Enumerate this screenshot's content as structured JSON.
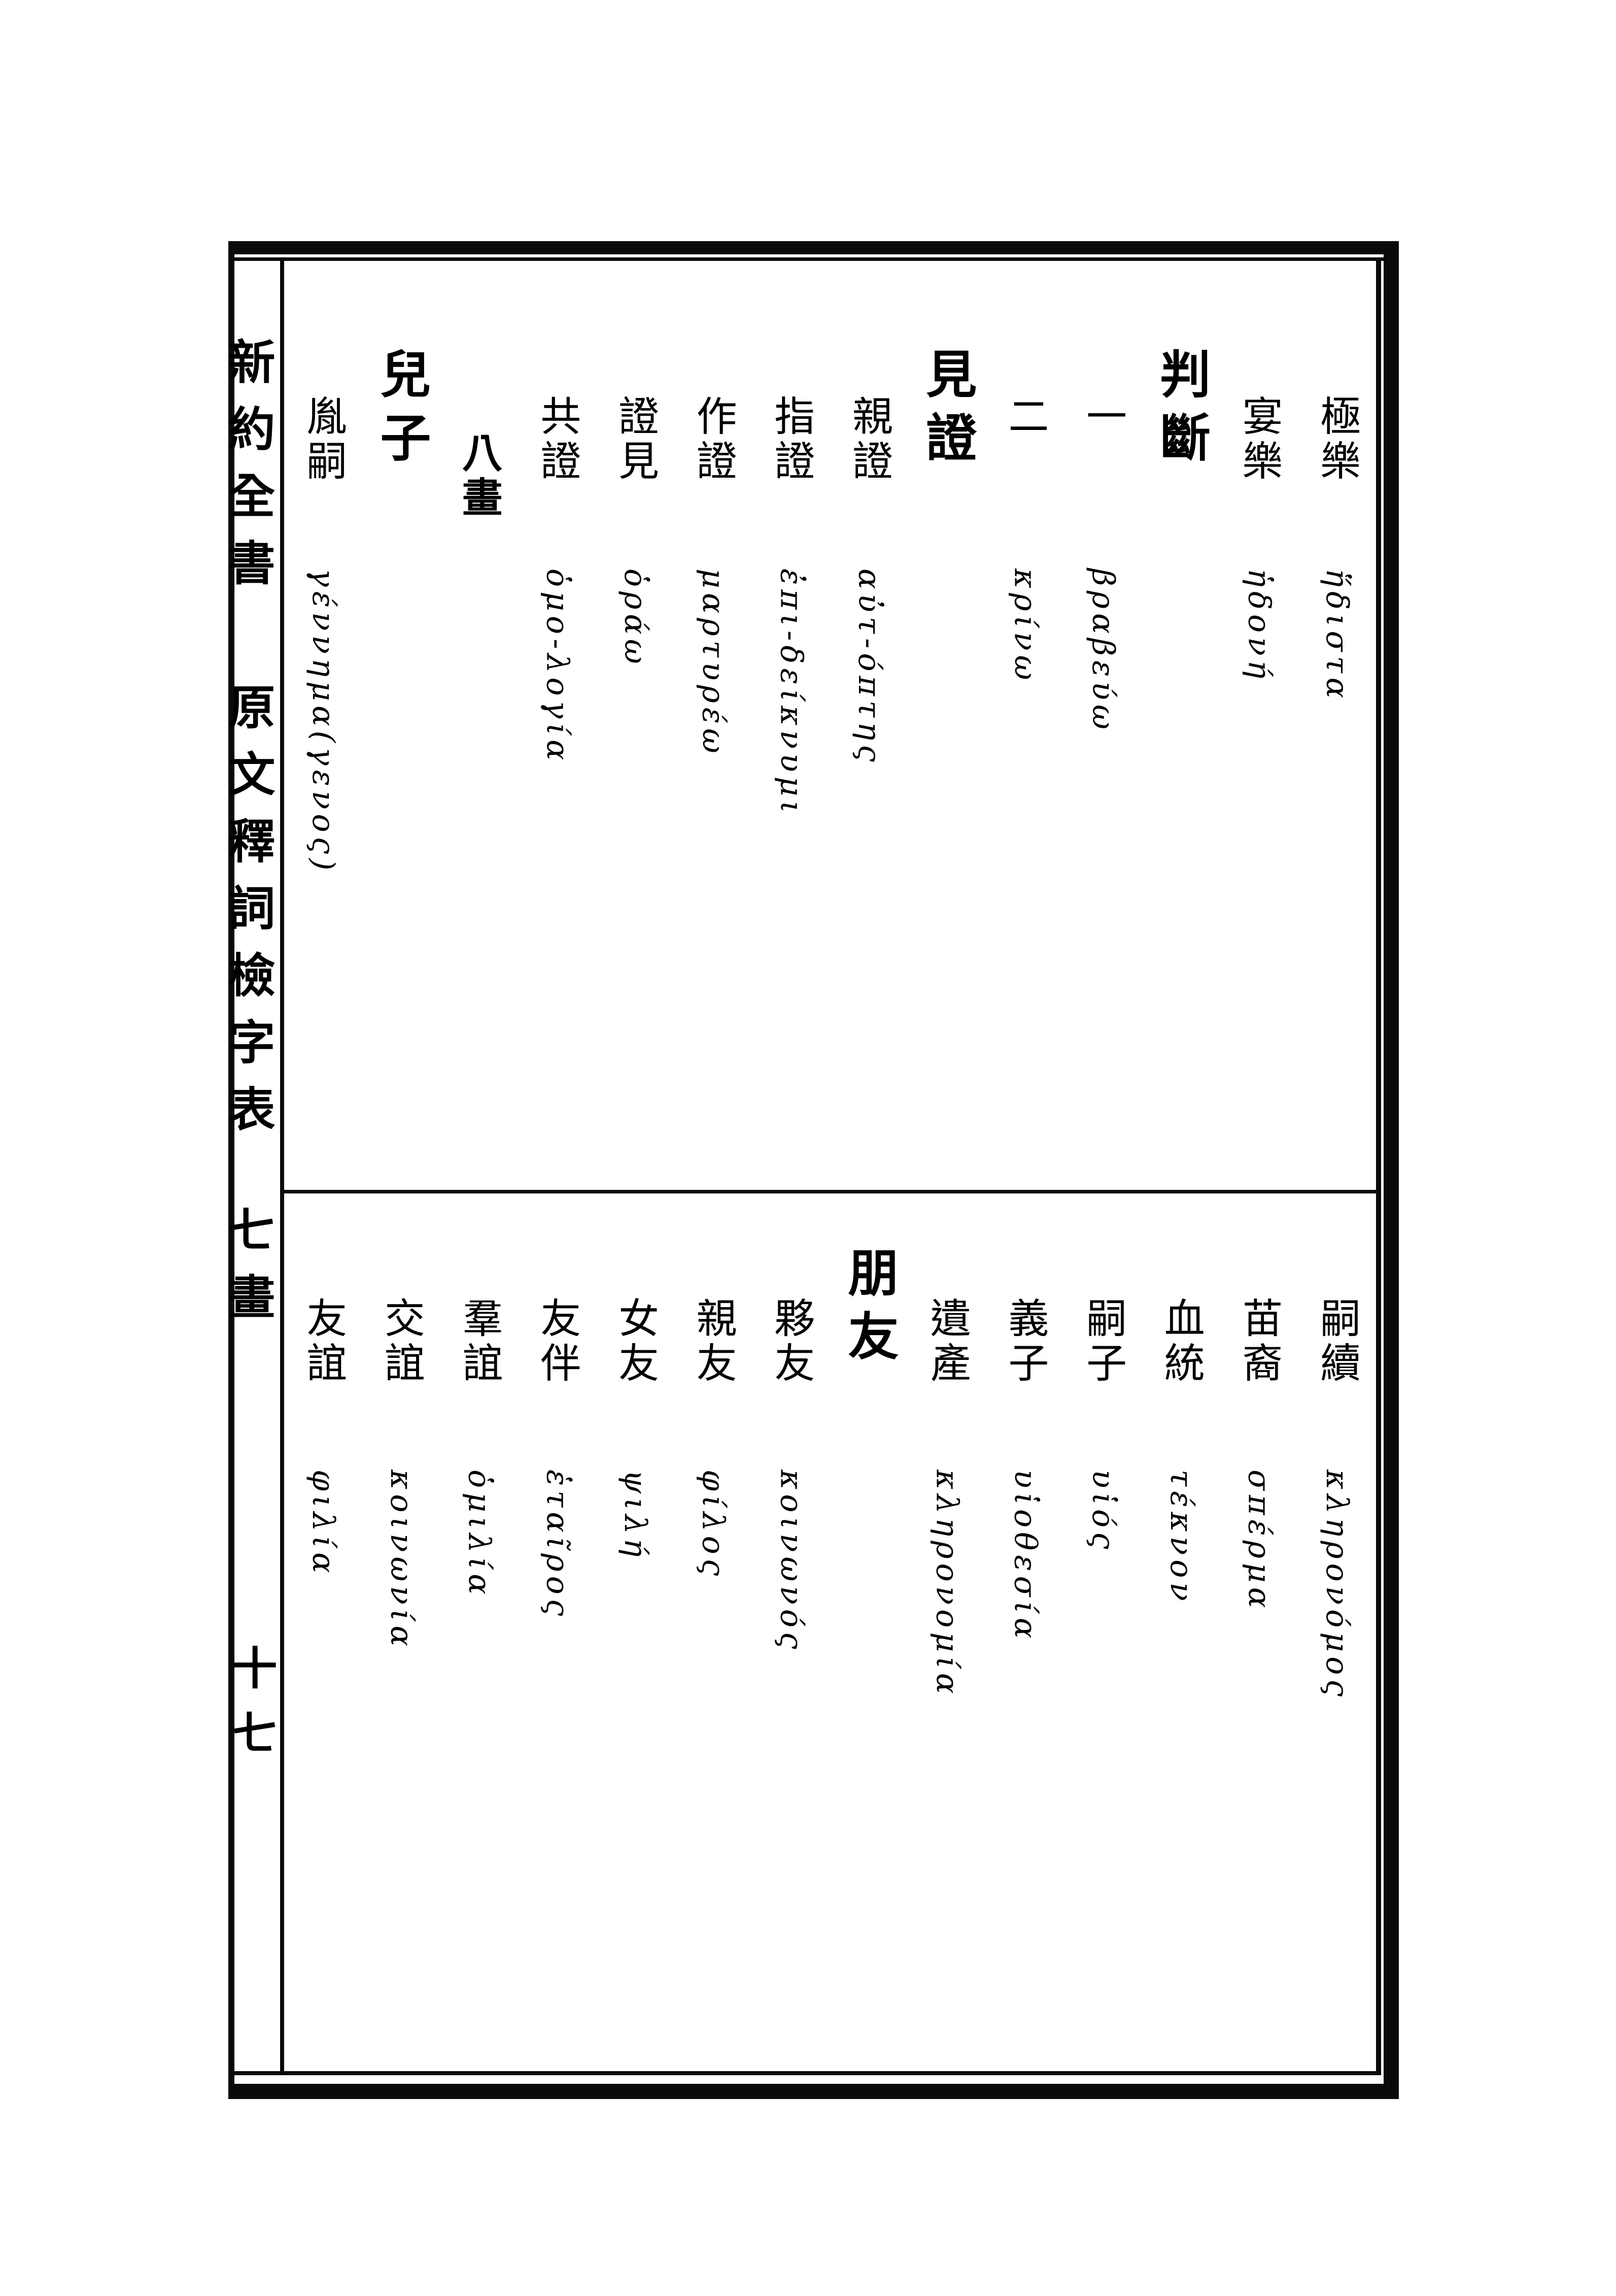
{
  "document": {
    "kind": "scanned dictionary index page, vertical traditional Chinese with Greek equivalents",
    "margin": {
      "book_title": "新約全書",
      "index_title": "原文釋詞檢字表",
      "stroke_section": "七畫",
      "page_number": "十七"
    },
    "sections": [
      {
        "name": "upper",
        "columns": [
          {
            "type": "entry",
            "cjk": "極樂",
            "greek": "ἥδιστα"
          },
          {
            "type": "entry",
            "cjk": "宴樂",
            "greek": "ἡδονή"
          },
          {
            "type": "header",
            "cjk": "判斷",
            "greek": ""
          },
          {
            "type": "entry",
            "cjk": "一",
            "greek": "βραβεύω"
          },
          {
            "type": "entry",
            "cjk": "二",
            "greek": "κρίνω"
          },
          {
            "type": "header",
            "cjk": "見證",
            "greek": ""
          },
          {
            "type": "entry",
            "cjk": "親證",
            "greek": "αὐτ-όπτης"
          },
          {
            "type": "entry",
            "cjk": "指證",
            "greek": "ἐπι-δείκνυμι"
          },
          {
            "type": "entry",
            "cjk": "作證",
            "greek": "μαρτυρέω"
          },
          {
            "type": "entry",
            "cjk": "證見",
            "greek": "ὁράω"
          },
          {
            "type": "entry",
            "cjk": "共證",
            "greek": "ὁμο-λογία"
          },
          {
            "type": "stroke_marker",
            "cjk": "八畫",
            "greek": ""
          },
          {
            "type": "header",
            "cjk": "兒子",
            "greek": ""
          },
          {
            "type": "entry",
            "cjk": "胤嗣",
            "greek": "γέννημα(γενος)"
          }
        ]
      },
      {
        "name": "lower",
        "columns": [
          {
            "type": "entry",
            "cjk": "嗣續",
            "greek": "κληρονόμος"
          },
          {
            "type": "entry",
            "cjk": "苗裔",
            "greek": "σπέρμα"
          },
          {
            "type": "entry",
            "cjk": "血統",
            "greek": "τέκνον"
          },
          {
            "type": "entry",
            "cjk": "嗣子",
            "greek": "υἱός"
          },
          {
            "type": "entry",
            "cjk": "義子",
            "greek": "υἱοθεσία"
          },
          {
            "type": "entry",
            "cjk": "遺產",
            "greek": "κληρονομία"
          },
          {
            "type": "header",
            "cjk": "朋友",
            "greek": ""
          },
          {
            "type": "entry",
            "cjk": "夥友",
            "greek": "κοινωνός"
          },
          {
            "type": "entry",
            "cjk": "親友",
            "greek": "φίλος"
          },
          {
            "type": "entry",
            "cjk": "女友",
            "greek": "ψιλή"
          },
          {
            "type": "entry",
            "cjk": "友伴",
            "greek": "ἑταῖρος"
          },
          {
            "type": "entry",
            "cjk": "羣誼",
            "greek": "ὁμιλία"
          },
          {
            "type": "entry",
            "cjk": "交誼",
            "greek": "κοινωνία"
          },
          {
            "type": "entry",
            "cjk": "友誼",
            "greek": "φιλία"
          }
        ]
      }
    ],
    "ink_color": "#0a0a0a",
    "paper_color": "#ffffff"
  }
}
